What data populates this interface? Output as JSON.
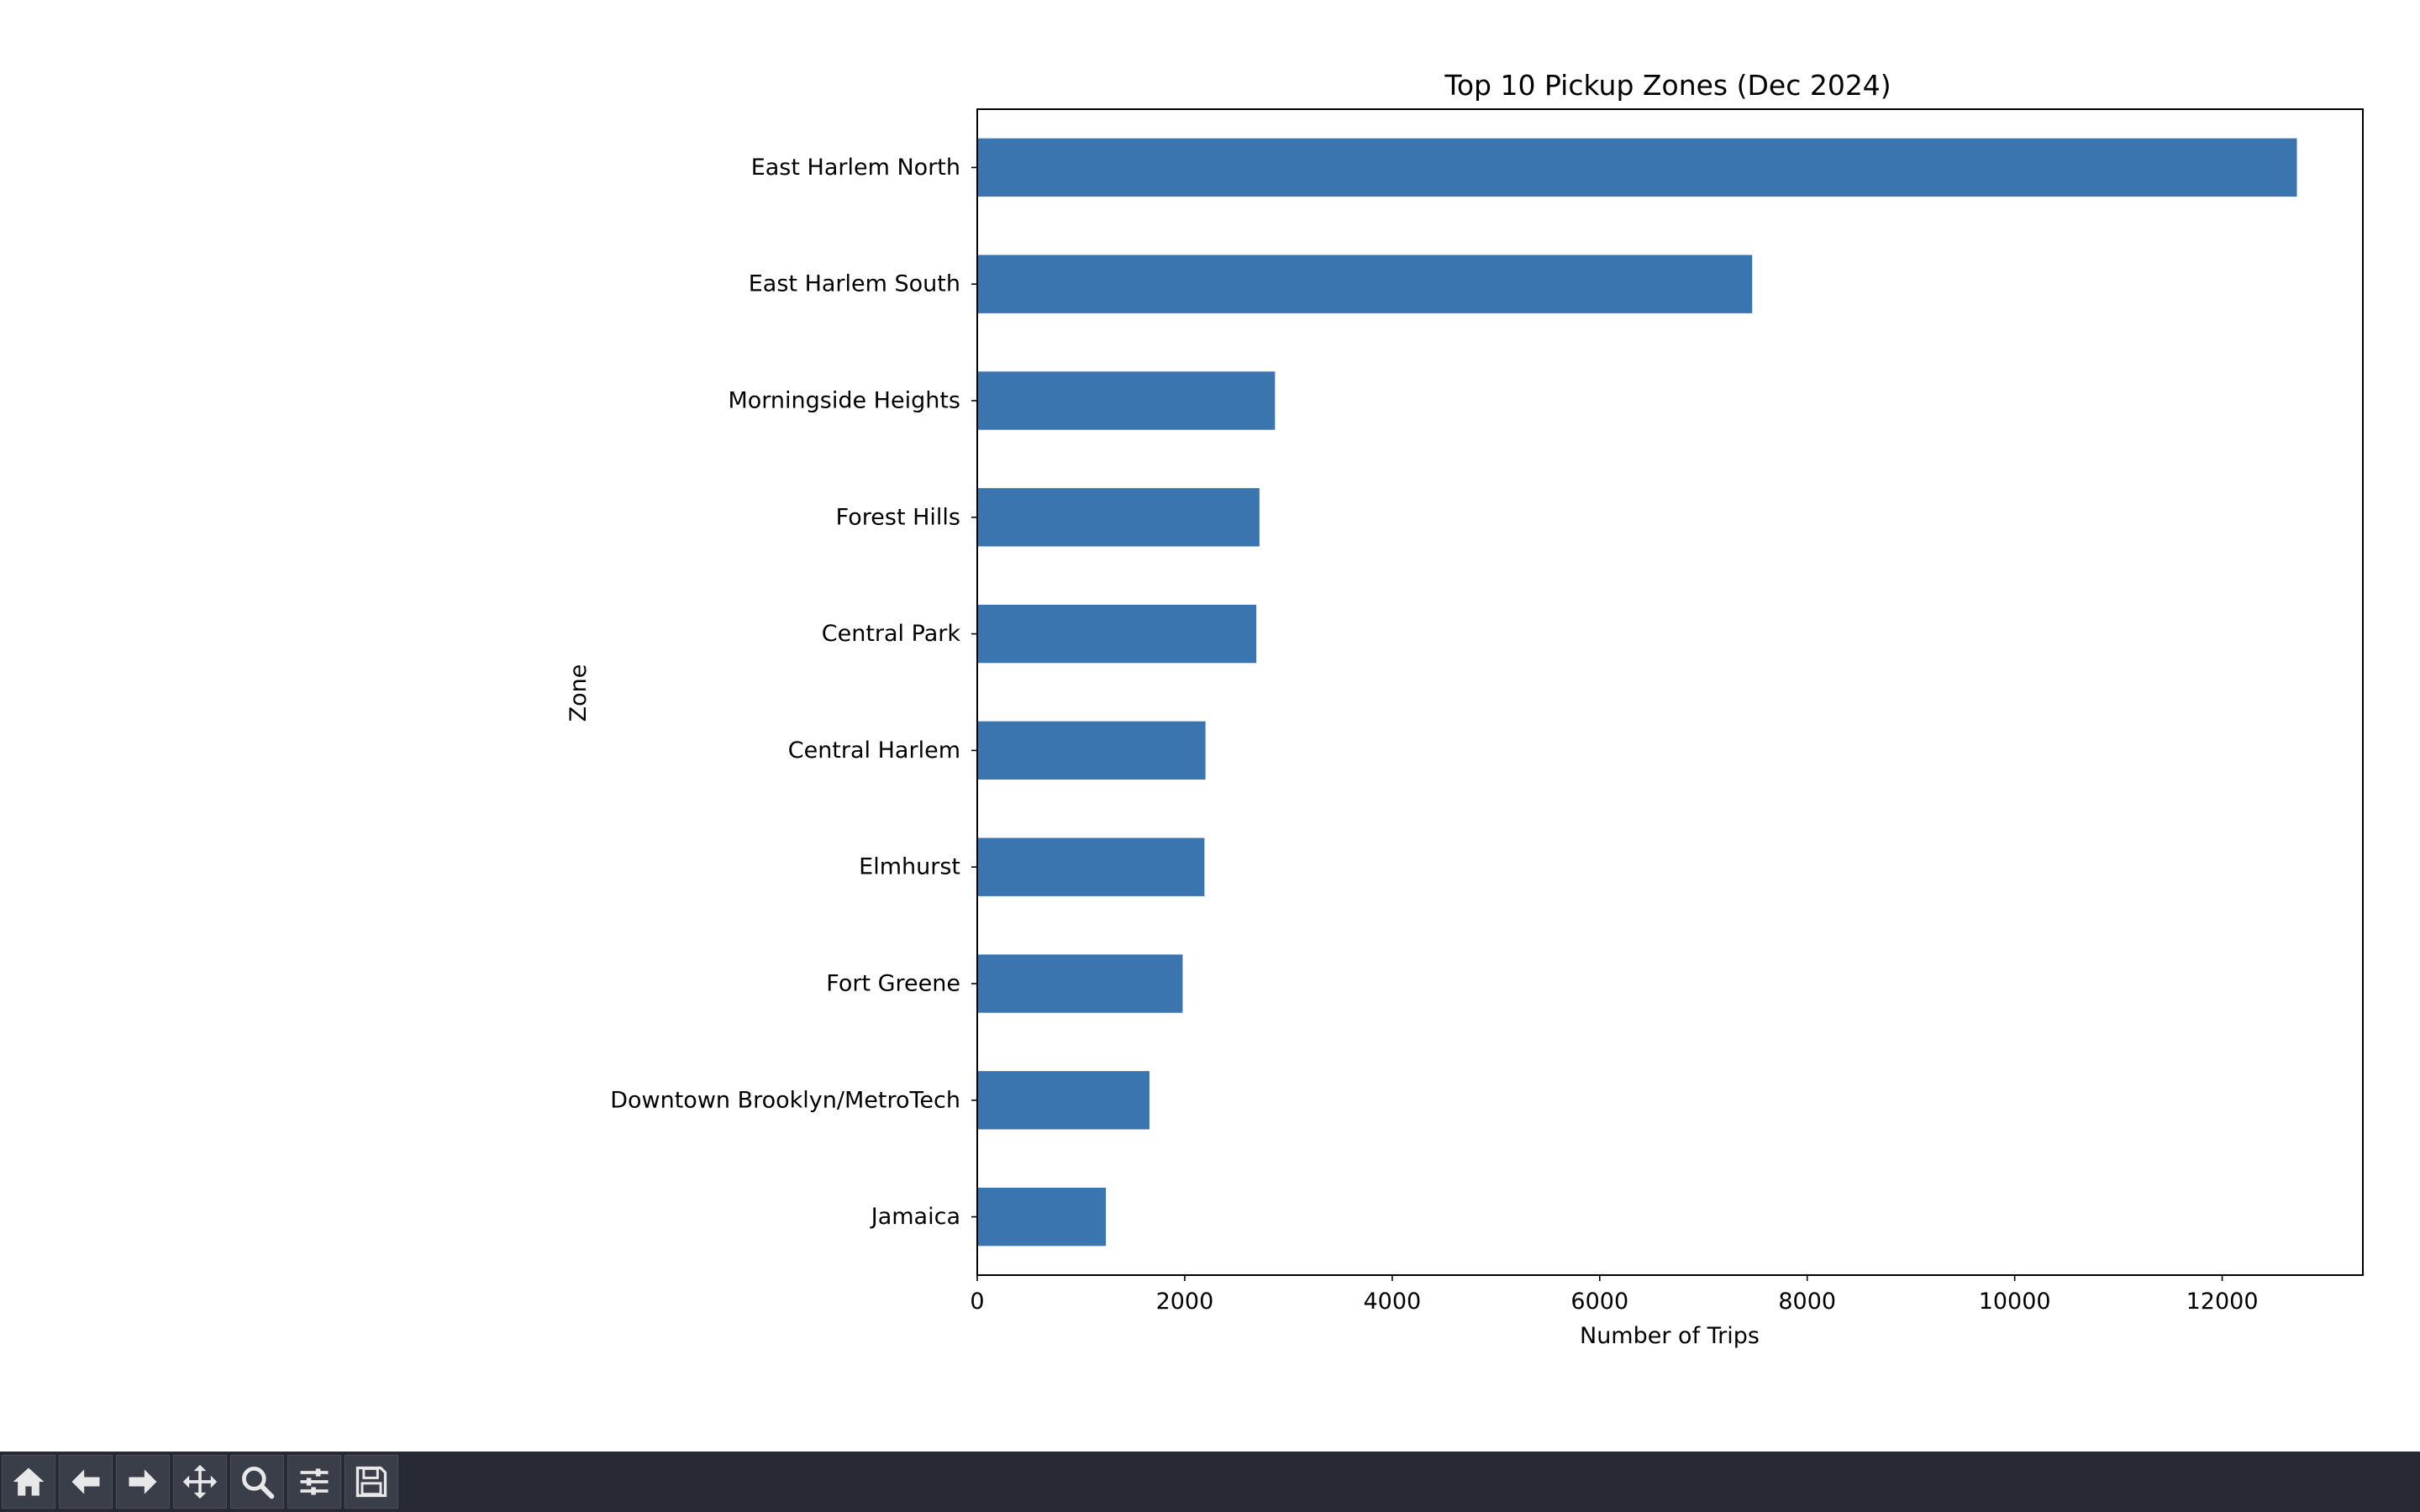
{
  "chart_data": {
    "type": "bar",
    "orientation": "horizontal",
    "title": "Top 10 Pickup Zones (Dec 2024)",
    "xlabel": "Number of Trips",
    "ylabel": "Zone",
    "categories": [
      "East Harlem North",
      "East Harlem South",
      "Morningside Heights",
      "Forest Hills",
      "Central Park",
      "Central Harlem",
      "Elmhurst",
      "Fort Greene",
      "Downtown Brooklyn/MetroTech",
      "Jamaica"
    ],
    "values": [
      12720,
      7470,
      2870,
      2720,
      2690,
      2200,
      2190,
      1980,
      1660,
      1240
    ],
    "xlim": [
      0,
      13356
    ],
    "xticks": [
      0,
      2000,
      4000,
      6000,
      8000,
      10000,
      12000
    ],
    "xtick_labels": [
      "0",
      "2000",
      "4000",
      "6000",
      "8000",
      "10000",
      "12000"
    ],
    "bar_color": "#3b75af",
    "grid": false,
    "legend": "none"
  },
  "toolbar": {
    "background": "#272a33",
    "buttons": [
      {
        "name": "home-button",
        "icon": "home-icon"
      },
      {
        "name": "back-button",
        "icon": "arrow-left-icon"
      },
      {
        "name": "forward-button",
        "icon": "arrow-right-icon"
      },
      {
        "name": "pan-button",
        "icon": "move-icon"
      },
      {
        "name": "zoom-button",
        "icon": "magnifier-icon"
      },
      {
        "name": "configure-subplots-button",
        "icon": "sliders-icon"
      },
      {
        "name": "save-button",
        "icon": "floppy-disk-icon"
      }
    ]
  }
}
